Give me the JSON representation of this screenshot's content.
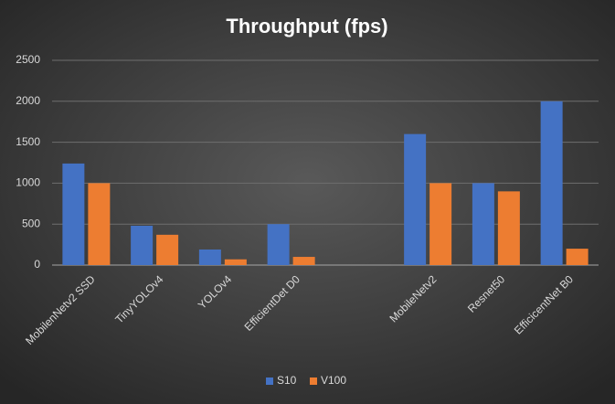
{
  "chart_data": {
    "type": "bar",
    "title": "Throughput (fps)",
    "categories": [
      "MobilenNetv2 SSD",
      "TinyYOLOv4",
      "YOLOv4",
      "EfficientDet D0",
      null,
      "MobileNetv2",
      "Resnet50",
      "EfficicentNet B0"
    ],
    "series": [
      {
        "name": "S10",
        "color": "#4472c4",
        "values": [
          1240,
          480,
          190,
          500,
          null,
          1600,
          1000,
          2000
        ]
      },
      {
        "name": "V100",
        "color": "#ed7d31",
        "values": [
          1000,
          370,
          70,
          100,
          null,
          1000,
          900,
          200
        ]
      }
    ],
    "ylim": [
      0,
      2500
    ],
    "yticks": [
      0,
      500,
      1000,
      1500,
      2000,
      2500
    ],
    "grid": true,
    "legend": "bottom"
  }
}
